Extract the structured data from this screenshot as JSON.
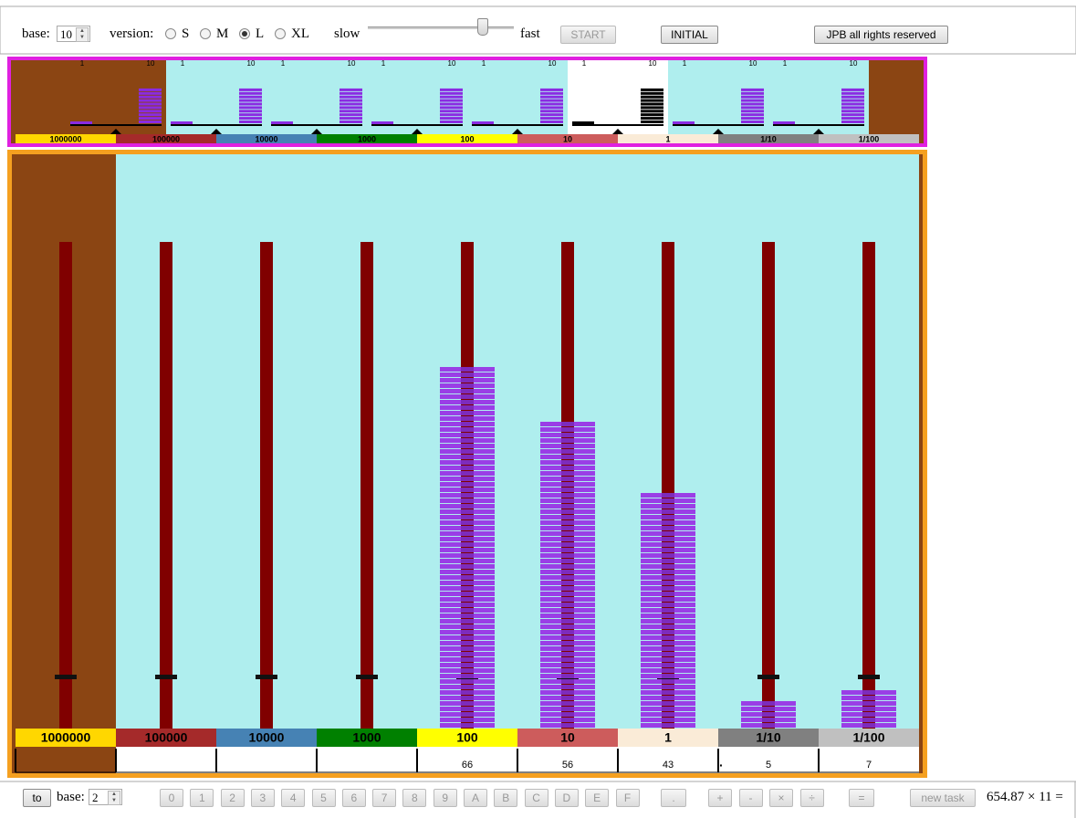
{
  "toolbar": {
    "base_label": "base:",
    "base_value": "10",
    "version_label": "version:",
    "versions": [
      "S",
      "M",
      "L",
      "XL"
    ],
    "selected_version": 2,
    "slow": "slow",
    "fast": "fast",
    "start": "START",
    "initial": "INITIAL",
    "rights": "JPB all rights reserved"
  },
  "mini": {
    "scales": [
      {
        "low": "1",
        "high": "10"
      },
      {
        "low": "1",
        "high": "10"
      },
      {
        "low": "1",
        "high": "10"
      },
      {
        "low": "1",
        "high": "10"
      },
      {
        "low": "1",
        "high": "10"
      },
      {
        "low": "1",
        "high": "10"
      },
      {
        "low": "1",
        "high": "10"
      },
      {
        "low": "1",
        "high": "10"
      }
    ],
    "highlighted": 5
  },
  "columns": {
    "labels": [
      "1000000",
      "100000",
      "10000",
      "1000",
      "100",
      "10",
      "1",
      "1/10",
      "1/100"
    ],
    "colors": [
      "#ffd700",
      "#a52a2a",
      "#4682b4",
      "#008000",
      "#ffff00",
      "#cd5c5c",
      "#faebd7",
      "#808080",
      "#c0c0c0"
    ],
    "counts": [
      null,
      null,
      null,
      null,
      66,
      56,
      43,
      5,
      7
    ],
    "decimal_mark": "."
  },
  "bottom": {
    "to": "to",
    "base_label": "base:",
    "base_value": "2",
    "keys": [
      "0",
      "1",
      "2",
      "3",
      "4",
      "5",
      "6",
      "7",
      "8",
      "9",
      "A",
      "B",
      "C",
      "D",
      "E",
      "F"
    ],
    "point": ".",
    "ops": [
      "+",
      "-",
      "×",
      "÷"
    ],
    "equals": "=",
    "new_task": "new task",
    "task": "654.87 × 11 ="
  }
}
